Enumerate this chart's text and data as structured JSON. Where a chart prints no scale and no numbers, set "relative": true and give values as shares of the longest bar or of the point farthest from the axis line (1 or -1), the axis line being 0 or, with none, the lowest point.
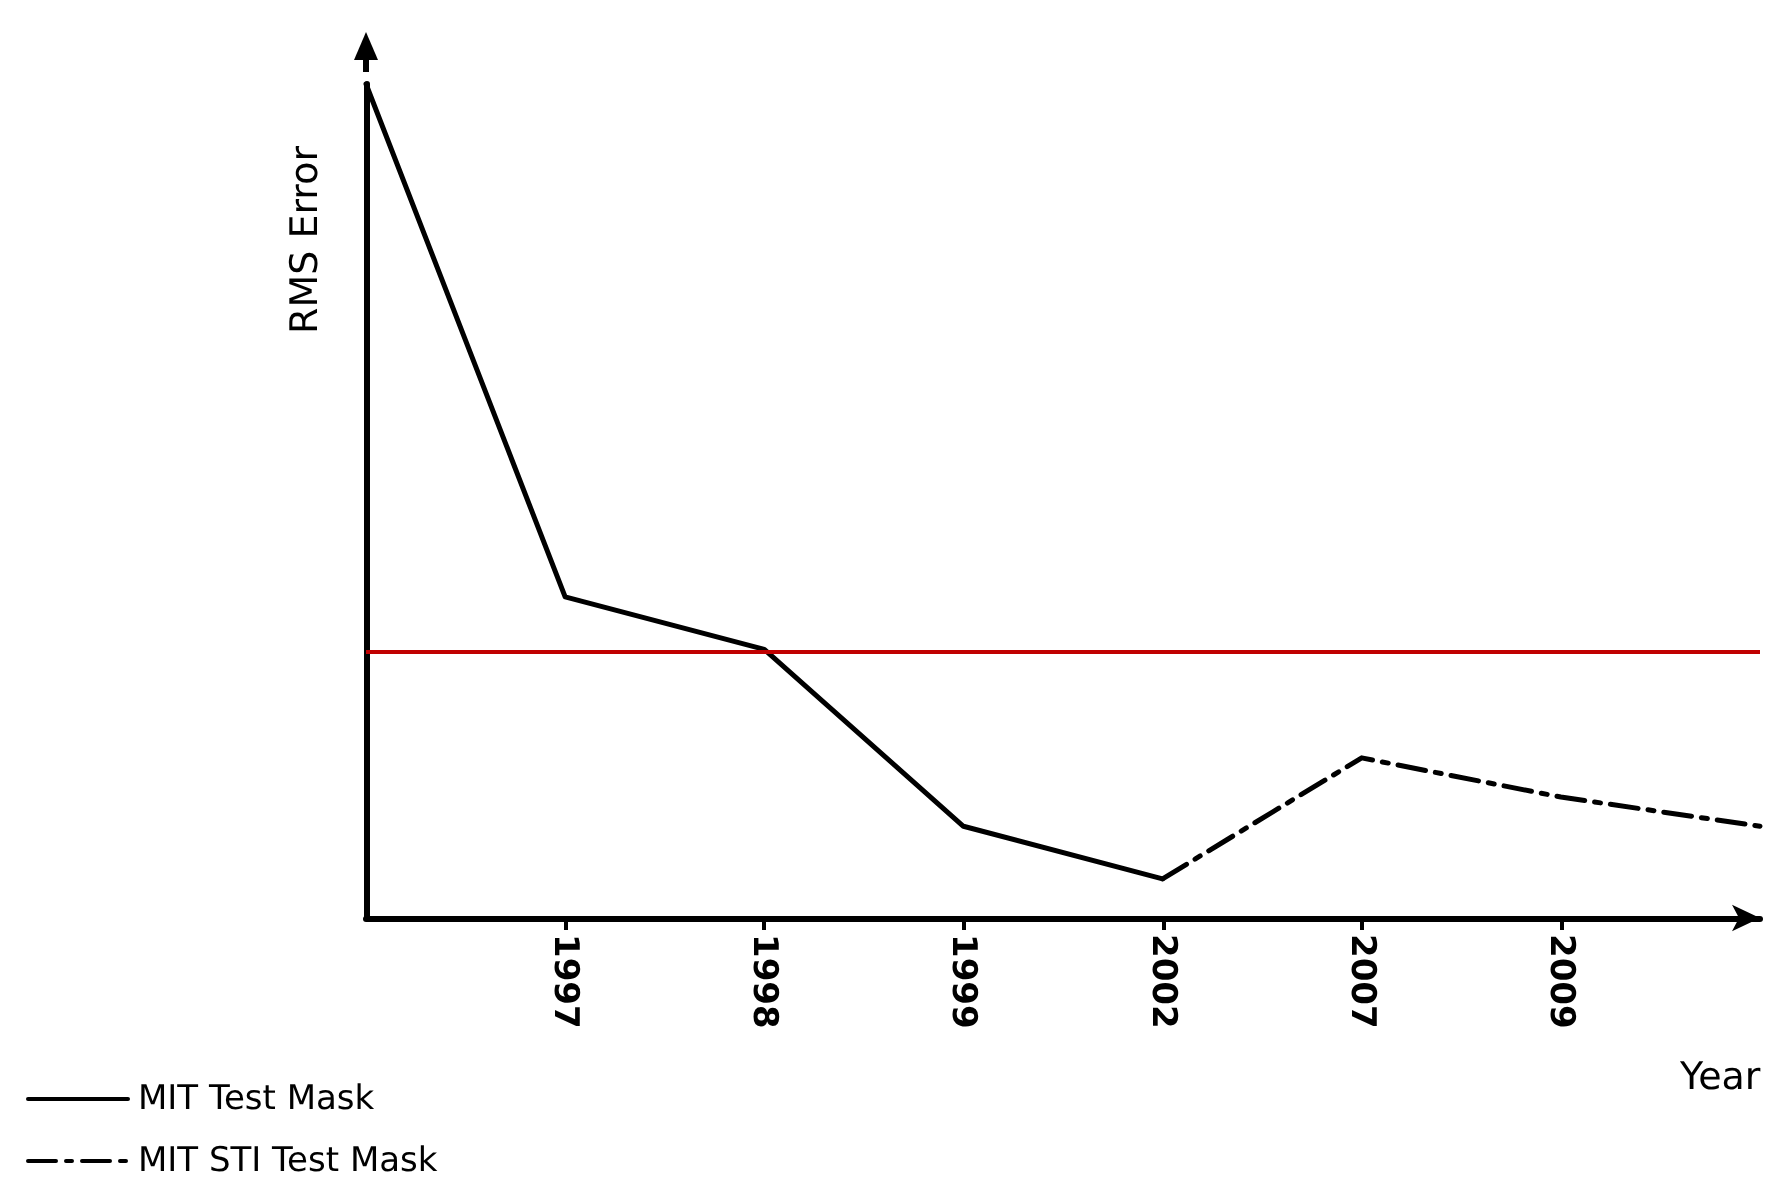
{
  "chart_data": {
    "type": "line",
    "relative": true,
    "xlabel": "Year",
    "ylabel": "RMS Error",
    "categories": [
      null,
      "1997",
      "1998",
      "1999",
      "2002",
      "2007",
      "2009",
      null
    ],
    "series": [
      {
        "name": "MIT Test Mask",
        "color": "#000000",
        "line_style": "solid",
        "values": [
          1,
          0.385,
          0.322,
          0.11,
          0.047,
          null,
          null,
          null
        ]
      },
      {
        "name": "MIT STI Test Mask",
        "color": "#000000",
        "line_style": "dashed",
        "values": [
          null,
          null,
          null,
          null,
          0.047,
          0.192,
          0.145,
          0.11
        ]
      }
    ],
    "ref_lines": [
      {
        "axis": "y",
        "value": 0.322,
        "color": "#c00000"
      }
    ],
    "legend": "bottom left",
    "grid": false,
    "marker": "none"
  }
}
